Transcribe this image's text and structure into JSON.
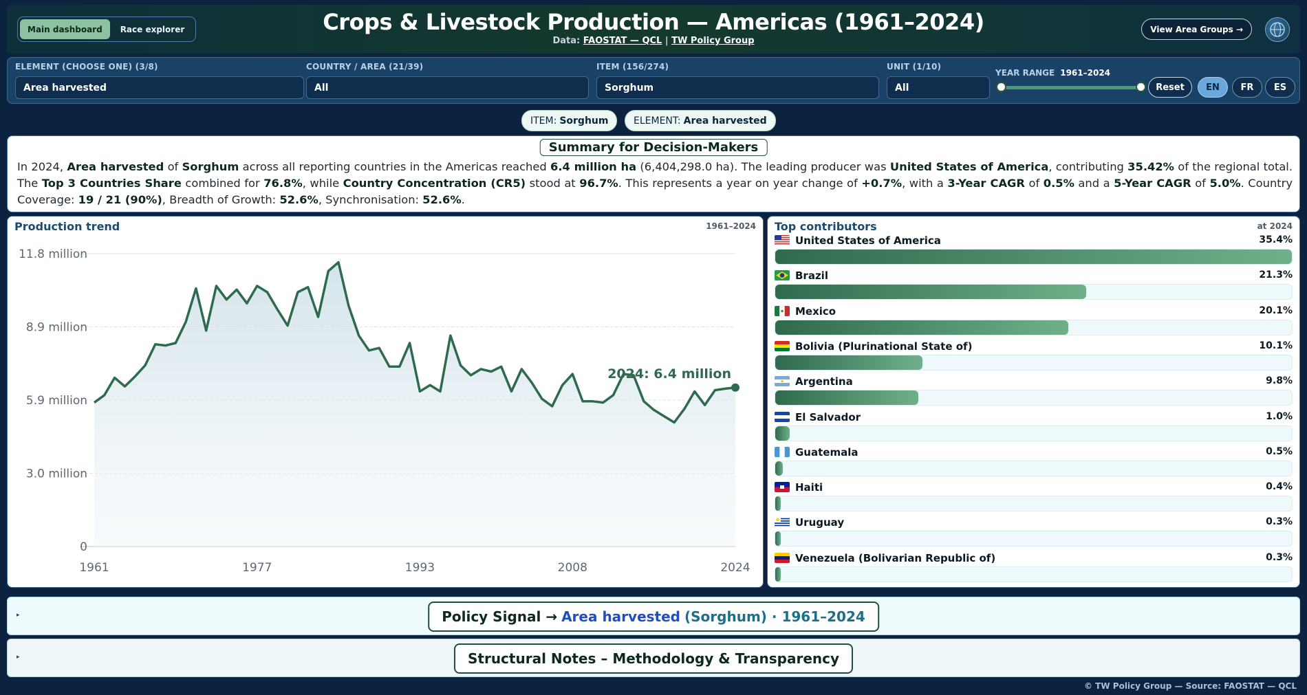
{
  "header": {
    "nav": [
      {
        "label": "Main dashboard",
        "active": true
      },
      {
        "label": "Race explorer",
        "active": false
      }
    ],
    "title": "Crops & Livestock Production — Americas (1961–2024)",
    "data_prefix": "Data:",
    "data_source": "FAOSTAT — QCL",
    "separator": "|",
    "data_org": "TW Policy Group",
    "view_groups_label": "View Area Groups →"
  },
  "filters": {
    "element": {
      "label": "ELEMENT (CHOOSE ONE) (3/8)",
      "value": "Area harvested"
    },
    "country": {
      "label": "COUNTRY / AREA (21/39)",
      "value": "All"
    },
    "item": {
      "label": "ITEM (156/274)",
      "value": "Sorghum"
    },
    "unit": {
      "label": "UNIT (1/10)",
      "value": "All"
    },
    "year_range": {
      "label": "YEAR RANGE",
      "value": "1961–2024",
      "min": 1961,
      "max": 2024
    },
    "reset_label": "Reset",
    "languages": [
      {
        "label": "EN",
        "active": true
      },
      {
        "label": "FR",
        "active": false
      },
      {
        "label": "ES",
        "active": false
      }
    ]
  },
  "pills": {
    "item_key": "ITEM:",
    "item_value": "Sorghum",
    "element_key": "ELEMENT:",
    "element_value": "Area harvested"
  },
  "summary": {
    "title": "Summary for Decision-Makers",
    "t1": "In 2024, ",
    "element": "Area harvested",
    "t2": " of ",
    "item": "Sorghum",
    "t3": " across all reporting countries in the Americas reached ",
    "total": "6.4 million ha",
    "t4": " (6,404,298.0 ha). The leading producer was ",
    "leader": "United States of America",
    "t5": ", contributing ",
    "leader_share": "35.42%",
    "t6": " of the regional total. The ",
    "top3_label": "Top 3 Countries Share",
    "t7": " combined for ",
    "top3_value": "76.8%",
    "t8": ", while ",
    "cr5_label": "Country Concentration (CR5)",
    "t9": " stood at ",
    "cr5_value": "96.7%",
    "t10": ". This represents a year on year change of ",
    "yoy": "+0.7%",
    "t11": ", with a ",
    "cagr3_label": "3-Year CAGR",
    "t12": " of ",
    "cagr3_value": "0.5%",
    "t13": " and a ",
    "cagr5_label": "5-Year CAGR",
    "t14": " of ",
    "cagr5_value": "5.0%",
    "t15": ". Country Coverage: ",
    "coverage": "19 / 21 (90%)",
    "t16": ", Breadth of Growth: ",
    "breadth": "52.6%",
    "t17": ", Synchronisation: ",
    "sync": "52.6%",
    "t18": "."
  },
  "trend_panel": {
    "title": "Production trend",
    "range": "1961–2024",
    "annotation": "2024: 6.4 million"
  },
  "chart_data": {
    "type": "area",
    "title": "Production trend",
    "ylim": [
      0,
      11800000
    ],
    "y_ticks": [
      0,
      2950000,
      5900000,
      8850000,
      11800000
    ],
    "y_tick_labels": [
      "0",
      "3.0 million",
      "5.9 million",
      "8.9 million",
      "11.8 million"
    ],
    "x_ticks": [
      1961,
      1977,
      1993,
      2008,
      2024
    ],
    "x_tick_labels": [
      "1961",
      "1977",
      "1993",
      "2008",
      "2024"
    ],
    "grid": true,
    "x": [
      1961,
      1962,
      1963,
      1964,
      1965,
      1966,
      1967,
      1968,
      1969,
      1970,
      1971,
      1972,
      1973,
      1974,
      1975,
      1976,
      1977,
      1978,
      1979,
      1980,
      1981,
      1982,
      1983,
      1984,
      1985,
      1986,
      1987,
      1988,
      1989,
      1990,
      1991,
      1992,
      1993,
      1994,
      1995,
      1996,
      1997,
      1998,
      1999,
      2000,
      2001,
      2002,
      2003,
      2004,
      2005,
      2006,
      2007,
      2008,
      2009,
      2010,
      2011,
      2012,
      2013,
      2014,
      2015,
      2016,
      2017,
      2018,
      2019,
      2020,
      2021,
      2022,
      2023,
      2024
    ],
    "values": [
      5800000,
      6100000,
      6800000,
      6450000,
      6850000,
      7300000,
      8150000,
      8100000,
      8200000,
      9050000,
      10400000,
      8700000,
      10500000,
      9950000,
      10350000,
      9800000,
      10500000,
      10250000,
      9550000,
      8900000,
      10250000,
      10450000,
      9250000,
      11100000,
      11450000,
      9700000,
      8500000,
      7900000,
      8000000,
      7250000,
      7250000,
      8200000,
      6250000,
      6500000,
      6250000,
      8500000,
      7300000,
      6900000,
      7150000,
      7050000,
      7250000,
      6250000,
      7150000,
      6600000,
      5950000,
      5650000,
      6500000,
      6950000,
      5850000,
      5850000,
      5800000,
      6100000,
      6950000,
      6900000,
      5850000,
      5500000,
      5250000,
      5000000,
      5550000,
      6250000,
      5700000,
      6300000,
      6360000,
      6404298
    ],
    "annotation": "2024: 6.4 million"
  },
  "contributors": {
    "title": "Top contributors",
    "at": "at 2024",
    "items": [
      {
        "name": "United States of America",
        "share": "35.4%",
        "value": 35.4
      },
      {
        "name": "Brazil",
        "share": "21.3%",
        "value": 21.3
      },
      {
        "name": "Mexico",
        "share": "20.1%",
        "value": 20.1
      },
      {
        "name": "Bolivia (Plurinational State of)",
        "share": "10.1%",
        "value": 10.1
      },
      {
        "name": "Argentina",
        "share": "9.8%",
        "value": 9.8
      },
      {
        "name": "El Salvador",
        "share": "1.0%",
        "value": 1.0
      },
      {
        "name": "Guatemala",
        "share": "0.5%",
        "value": 0.5
      },
      {
        "name": "Haiti",
        "share": "0.4%",
        "value": 0.4
      },
      {
        "name": "Uruguay",
        "share": "0.3%",
        "value": 0.3
      },
      {
        "name": "Venezuela (Bolivarian Republic of)",
        "share": "0.3%",
        "value": 0.3
      }
    ]
  },
  "policy": {
    "prefix": "Policy Signal →",
    "element": "Area harvested",
    "item": "(Sorghum) · 1961–2024"
  },
  "notes": {
    "title": "Structural Notes – Methodology & Transparency"
  },
  "footer": "© TW Policy Group — Source: FAOSTAT — QCL",
  "colors": {
    "accent": "#2f6a4d",
    "line": "#2f6a4d",
    "header_bg": "#0c2340"
  }
}
